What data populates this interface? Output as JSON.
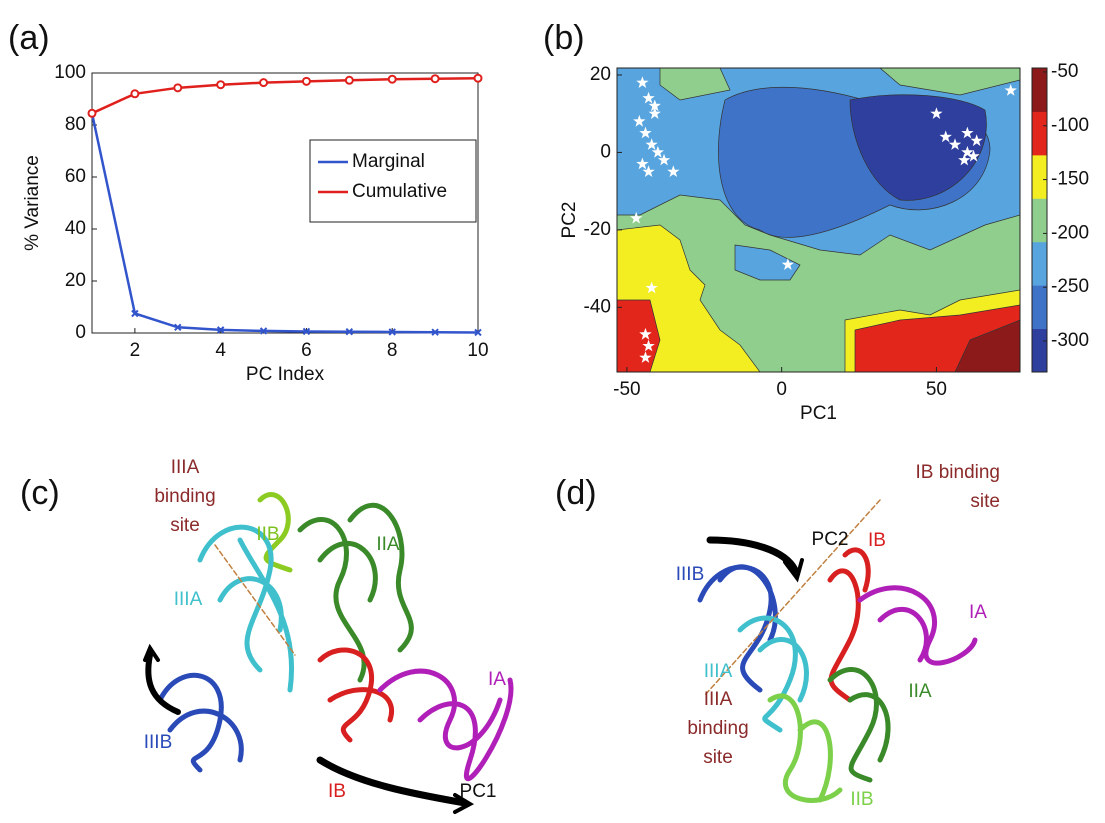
{
  "chart_data": [
    {
      "type": "line",
      "panel_label": "(a)",
      "xlabel": "PC Index",
      "ylabel": "% Variance",
      "x": [
        1,
        2,
        3,
        4,
        5,
        6,
        7,
        8,
        9,
        10
      ],
      "xlim": [
        1,
        10
      ],
      "xticks": [
        2,
        4,
        6,
        8,
        10
      ],
      "ylim": [
        0,
        100
      ],
      "yticks": [
        0,
        20,
        40,
        60,
        80,
        100
      ],
      "legend": "right",
      "series": [
        {
          "name": "Marginal",
          "color": "#3355cc",
          "marker": "x",
          "values": [
            84.5,
            7.5,
            2.2,
            1.2,
            0.8,
            0.6,
            0.5,
            0.4,
            0.3,
            0.2
          ]
        },
        {
          "name": "Cumulative",
          "color": "#e0201c",
          "marker": "o",
          "values": [
            84.5,
            92,
            94.3,
            95.5,
            96.3,
            96.8,
            97.2,
            97.6,
            97.8,
            98
          ]
        }
      ]
    },
    {
      "type": "contour",
      "panel_label": "(b)",
      "xlabel": "PC1",
      "ylabel": "PC2",
      "xlim": [
        -53.2,
        77
      ],
      "xticks": [
        -50,
        0,
        50
      ],
      "ylim": [
        -56.7,
        21.8
      ],
      "yticks": [
        -40,
        -20,
        0,
        20
      ],
      "colorbar": {
        "lim": [
          -328.8,
          -46.3
        ],
        "ticks": [
          -300,
          -250,
          -200,
          -150,
          -100,
          -50
        ],
        "colors": [
          "#2e3f9e",
          "#3f73c8",
          "#58a4de",
          "#8fce8c",
          "#f2ee22",
          "#e3261c",
          "#8c1a1a"
        ]
      },
      "points": {
        "color": "#ffffff",
        "x": [
          -45,
          -43,
          -41,
          -46,
          -44,
          -42,
          -40,
          -45,
          -43,
          -38,
          -41,
          -35,
          -47,
          2,
          -42,
          -44,
          -43,
          -44,
          56,
          60,
          62,
          63,
          59,
          53,
          60,
          50,
          74
        ],
        "y": [
          18,
          14,
          12,
          8,
          5,
          2,
          0,
          -3,
          -5,
          -2,
          10,
          -5,
          -17,
          -29,
          -35,
          -47,
          -50,
          -53,
          2,
          0,
          -1,
          3,
          -2,
          4,
          5,
          10,
          16
        ]
      }
    }
  ],
  "panels": [
    {
      "label": "(c)",
      "site": [
        "IIIA",
        "binding",
        "site"
      ],
      "domains": [
        "IIB",
        "IIA",
        "IIIA",
        "IA",
        "IIIB",
        "IB"
      ],
      "axis": "PC1"
    },
    {
      "label": "(d)",
      "site_top": [
        "IB binding",
        "site"
      ],
      "site_bottom": [
        "IIIA",
        "binding",
        "site"
      ],
      "domains": [
        "IIIB",
        "IB",
        "IA",
        "IIIA",
        "IIA",
        "IIB"
      ],
      "axis": "PC2"
    }
  ]
}
